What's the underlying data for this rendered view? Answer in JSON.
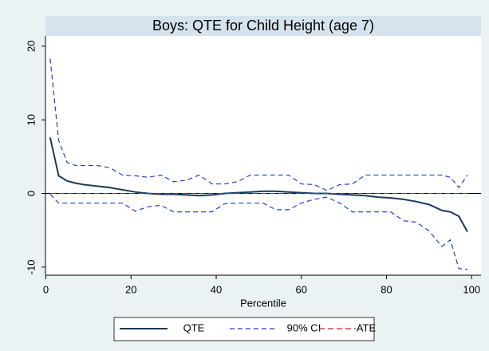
{
  "chart_data": {
    "type": "line",
    "title": "Boys: QTE for Child Height (age 7)",
    "x_label": "Percentile",
    "x": [
      1,
      3,
      5,
      7,
      9,
      12,
      15,
      18,
      21,
      24,
      27,
      30,
      33,
      36,
      39,
      42,
      45,
      48,
      51,
      54,
      57,
      60,
      63,
      66,
      69,
      72,
      75,
      78,
      81,
      84,
      87,
      90,
      93,
      95,
      97,
      99
    ],
    "series": [
      {
        "name": "QTE",
        "color": "#1a3a5c",
        "dash": "solid",
        "values": [
          7.6,
          2.4,
          1.7,
          1.4,
          1.2,
          1.0,
          0.8,
          0.5,
          0.2,
          0,
          -0.1,
          -0.1,
          -0.2,
          -0.3,
          -0.2,
          0,
          0.1,
          0.2,
          0.3,
          0.3,
          0.2,
          0.1,
          0,
          0,
          -0.1,
          -0.2,
          -0.3,
          -0.5,
          -0.6,
          -0.8,
          -1.1,
          -1.5,
          -2.3,
          -2.5,
          -3.1,
          -5.2
        ]
      },
      {
        "name": "90% CI",
        "color": "#1f3fd6",
        "dash": "dashed",
        "values": [
          18.3,
          7.2,
          4.2,
          3.8,
          3.8,
          3.8,
          3.5,
          2.5,
          2.4,
          2.2,
          2.5,
          1.6,
          1.8,
          2.5,
          1.3,
          1.3,
          1.6,
          2.5,
          2.5,
          2.5,
          2.5,
          1.3,
          1.2,
          0.4,
          1.2,
          1.3,
          2.5,
          2.5,
          2.5,
          2.5,
          2.5,
          2.5,
          2.5,
          2.2,
          0.8,
          2.5
        ],
        "lower": [
          -0.1,
          -1.3,
          -1.3,
          -1.3,
          -1.3,
          -1.3,
          -1.3,
          -1.3,
          -2.4,
          -1.8,
          -1.6,
          -2.5,
          -2.5,
          -2.5,
          -2.5,
          -1.4,
          -1.3,
          -1.3,
          -1.3,
          -2.2,
          -2.2,
          -1.3,
          -0.8,
          -0.5,
          -1.3,
          -2.5,
          -2.5,
          -2.5,
          -2.5,
          -3.7,
          -3.9,
          -5.1,
          -7.2,
          -6.3,
          -10.2,
          -10.3
        ]
      },
      {
        "name": "ATE",
        "color": "#d62020",
        "dash": "dashdot",
        "values": [
          0,
          0,
          0,
          0,
          0,
          0,
          0,
          0,
          0,
          0,
          0,
          0,
          0,
          0,
          0,
          0,
          0,
          0,
          0,
          0,
          0,
          0,
          0,
          0,
          0,
          0,
          0,
          0,
          0,
          0,
          0,
          0,
          0,
          0,
          0,
          0
        ]
      }
    ],
    "xlim": [
      -0.1,
      102.2
    ],
    "xticks": [
      0,
      20,
      40,
      60,
      80,
      100
    ],
    "ylim": [
      -11.1,
      21.4
    ],
    "yticks": [
      -10,
      0,
      10,
      20
    ],
    "reference_line": 0,
    "grid": false,
    "legend_position": "bottom"
  }
}
